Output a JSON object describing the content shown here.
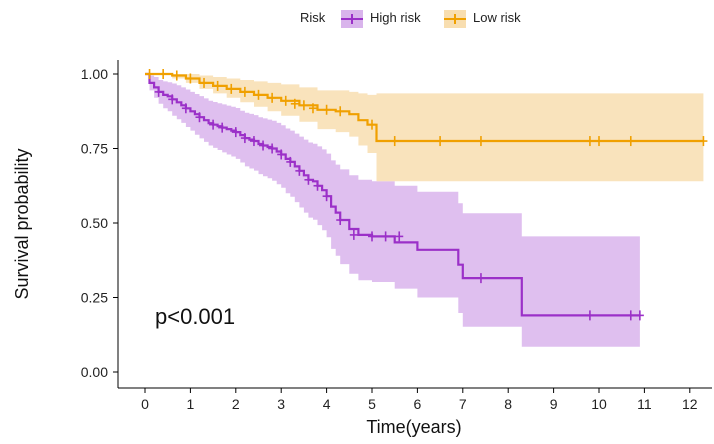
{
  "chart_data": {
    "type": "line",
    "subtype": "kaplan-meier",
    "title": "",
    "xlabel": "Time(years)",
    "ylabel": "Survival probability",
    "xlim": [
      0,
      12.3
    ],
    "ylim": [
      0,
      1
    ],
    "x_ticks": [
      0,
      1,
      2,
      3,
      4,
      5,
      6,
      7,
      8,
      9,
      10,
      11,
      12
    ],
    "y_ticks": [
      "0.00",
      "0.25",
      "0.50",
      "0.75",
      "1.00"
    ],
    "grid": false,
    "legend": {
      "title": "Risk",
      "position": "top"
    },
    "annotation": "p<0.001",
    "series": [
      {
        "name": "High risk",
        "color": "#9b30c8",
        "band_color": "#d9b4ec",
        "x": [
          0,
          0.1,
          0.2,
          0.3,
          0.4,
          0.5,
          0.6,
          0.7,
          0.8,
          0.9,
          1.0,
          1.1,
          1.2,
          1.3,
          1.4,
          1.5,
          1.6,
          1.7,
          1.8,
          1.9,
          2.0,
          2.1,
          2.2,
          2.3,
          2.4,
          2.5,
          2.6,
          2.7,
          2.8,
          2.9,
          3.0,
          3.1,
          3.2,
          3.3,
          3.4,
          3.5,
          3.6,
          3.7,
          3.8,
          3.9,
          4.0,
          4.1,
          4.2,
          4.3,
          4.5,
          4.7,
          5.0,
          5.5,
          6.0,
          6.5,
          6.9,
          7.0,
          7.5,
          8.3,
          9.0,
          9.8,
          10.9
        ],
        "y": [
          1.0,
          0.97,
          0.955,
          0.94,
          0.93,
          0.925,
          0.915,
          0.905,
          0.895,
          0.885,
          0.875,
          0.865,
          0.855,
          0.845,
          0.835,
          0.83,
          0.825,
          0.82,
          0.815,
          0.81,
          0.805,
          0.795,
          0.785,
          0.78,
          0.775,
          0.765,
          0.76,
          0.755,
          0.75,
          0.74,
          0.73,
          0.715,
          0.705,
          0.69,
          0.675,
          0.66,
          0.645,
          0.64,
          0.625,
          0.61,
          0.59,
          0.555,
          0.535,
          0.51,
          0.48,
          0.46,
          0.455,
          0.435,
          0.41,
          0.41,
          0.36,
          0.315,
          0.315,
          0.19,
          0.19,
          0.19,
          0.19
        ],
        "lower": [
          1.0,
          0.945,
          0.92,
          0.9,
          0.885,
          0.875,
          0.86,
          0.848,
          0.836,
          0.822,
          0.81,
          0.796,
          0.784,
          0.772,
          0.76,
          0.752,
          0.745,
          0.737,
          0.73,
          0.723,
          0.715,
          0.703,
          0.69,
          0.683,
          0.676,
          0.664,
          0.657,
          0.65,
          0.642,
          0.63,
          0.618,
          0.6,
          0.588,
          0.57,
          0.552,
          0.535,
          0.518,
          0.511,
          0.493,
          0.476,
          0.452,
          0.413,
          0.39,
          0.362,
          0.33,
          0.308,
          0.302,
          0.28,
          0.25,
          0.25,
          0.198,
          0.152,
          0.152,
          0.085,
          0.085,
          0.085,
          0.085
        ],
        "upper": [
          1.0,
          0.995,
          0.99,
          0.98,
          0.975,
          0.972,
          0.968,
          0.962,
          0.955,
          0.948,
          0.94,
          0.933,
          0.926,
          0.918,
          0.91,
          0.906,
          0.902,
          0.898,
          0.894,
          0.89,
          0.886,
          0.877,
          0.87,
          0.866,
          0.862,
          0.855,
          0.851,
          0.847,
          0.843,
          0.836,
          0.828,
          0.817,
          0.81,
          0.8,
          0.79,
          0.78,
          0.77,
          0.766,
          0.757,
          0.747,
          0.733,
          0.71,
          0.696,
          0.68,
          0.66,
          0.645,
          0.64,
          0.625,
          0.605,
          0.605,
          0.566,
          0.533,
          0.533,
          0.455,
          0.455,
          0.455,
          0.455
        ],
        "censor_x": [
          0.3,
          0.6,
          0.9,
          1.2,
          1.5,
          1.7,
          2.0,
          2.2,
          2.4,
          2.6,
          2.8,
          3.0,
          3.2,
          3.4,
          3.6,
          3.8,
          4.0,
          4.3,
          4.6,
          5.0,
          5.3,
          5.6,
          7.4,
          9.8,
          10.7,
          10.9
        ],
        "censor_y": [
          0.94,
          0.915,
          0.885,
          0.855,
          0.83,
          0.82,
          0.805,
          0.785,
          0.775,
          0.76,
          0.75,
          0.73,
          0.705,
          0.675,
          0.645,
          0.625,
          0.59,
          0.51,
          0.46,
          0.455,
          0.455,
          0.455,
          0.315,
          0.19,
          0.19,
          0.19
        ]
      },
      {
        "name": "Low risk",
        "color": "#f0a000",
        "band_color": "#f8deb0",
        "x": [
          0,
          0.3,
          0.6,
          0.9,
          1.2,
          1.5,
          1.8,
          2.1,
          2.4,
          2.7,
          3.0,
          3.4,
          3.8,
          4.2,
          4.5,
          4.7,
          4.9,
          5.1,
          6.0,
          7.0,
          8.0,
          9.0,
          10.0,
          11.0,
          12.3
        ],
        "y": [
          1.0,
          1.0,
          0.995,
          0.985,
          0.97,
          0.96,
          0.95,
          0.94,
          0.93,
          0.92,
          0.91,
          0.895,
          0.88,
          0.875,
          0.865,
          0.845,
          0.83,
          0.775,
          0.775,
          0.775,
          0.775,
          0.775,
          0.775,
          0.775,
          0.775
        ],
        "lower": [
          1.0,
          1.0,
          0.985,
          0.97,
          0.95,
          0.935,
          0.92,
          0.905,
          0.89,
          0.875,
          0.86,
          0.84,
          0.815,
          0.805,
          0.79,
          0.76,
          0.735,
          0.64,
          0.64,
          0.64,
          0.64,
          0.64,
          0.64,
          0.64,
          0.64
        ],
        "upper": [
          1.0,
          1.0,
          1.0,
          1.0,
          0.995,
          0.99,
          0.985,
          0.98,
          0.975,
          0.97,
          0.965,
          0.955,
          0.945,
          0.945,
          0.94,
          0.935,
          0.93,
          0.935,
          0.935,
          0.935,
          0.935,
          0.935,
          0.935,
          0.935,
          0.935
        ],
        "censor_x": [
          0.1,
          0.4,
          0.7,
          1.0,
          1.3,
          1.6,
          1.9,
          2.2,
          2.5,
          2.8,
          3.1,
          3.3,
          3.5,
          3.7,
          4.0,
          4.3,
          5.0,
          5.5,
          6.5,
          7.4,
          9.8,
          10.0,
          10.7,
          12.3
        ],
        "censor_y": [
          1.0,
          1.0,
          0.995,
          0.985,
          0.97,
          0.96,
          0.95,
          0.94,
          0.93,
          0.92,
          0.91,
          0.9,
          0.895,
          0.885,
          0.88,
          0.875,
          0.83,
          0.775,
          0.775,
          0.775,
          0.775,
          0.775,
          0.775,
          0.775
        ]
      }
    ]
  }
}
